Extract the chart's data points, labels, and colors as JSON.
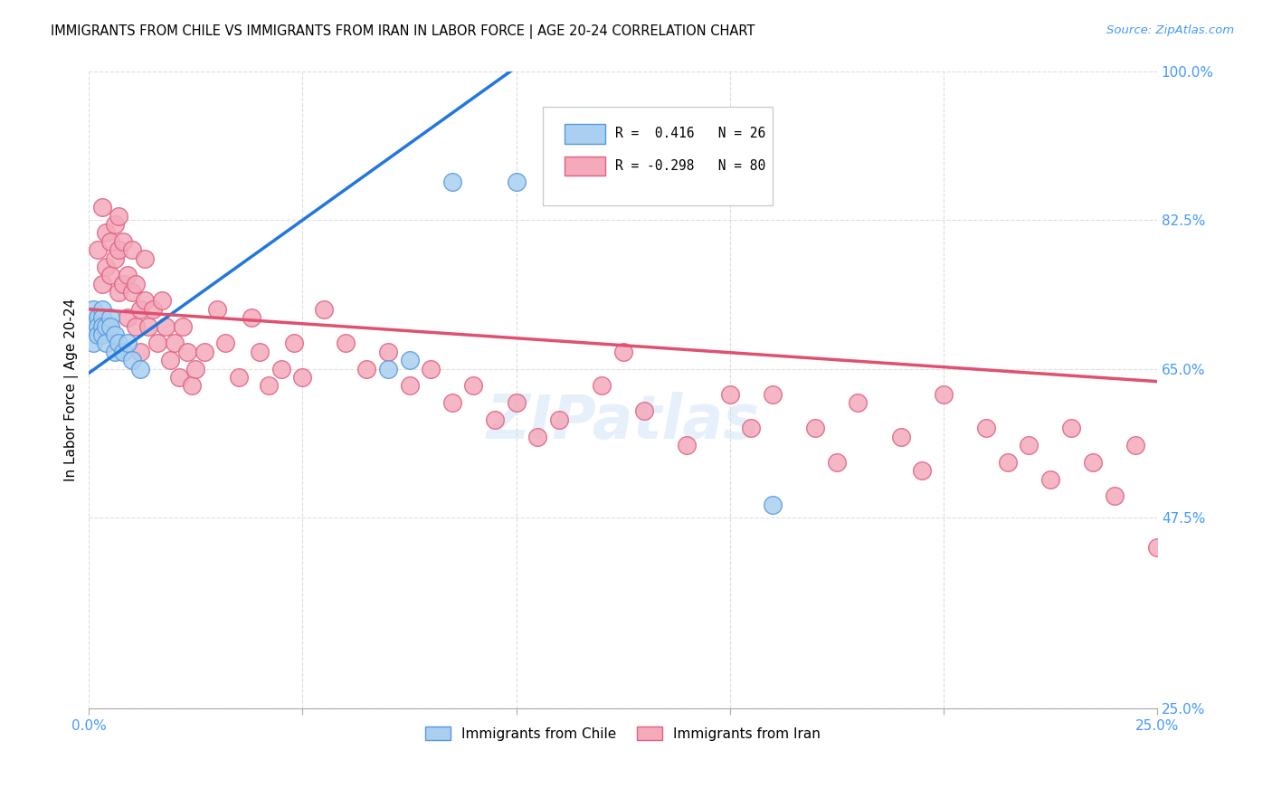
{
  "title": "IMMIGRANTS FROM CHILE VS IMMIGRANTS FROM IRAN IN LABOR FORCE | AGE 20-24 CORRELATION CHART",
  "source": "Source: ZipAtlas.com",
  "ylabel": "In Labor Force | Age 20-24",
  "xlim": [
    0.0,
    0.25
  ],
  "ylim": [
    0.25,
    1.0
  ],
  "xticks": [
    0.0,
    0.05,
    0.1,
    0.15,
    0.2,
    0.25
  ],
  "xticklabels": [
    "0.0%",
    "",
    "",
    "",
    "",
    "25.0%"
  ],
  "yticks": [
    0.25,
    0.475,
    0.65,
    0.825,
    1.0
  ],
  "yticklabels": [
    "25.0%",
    "47.5%",
    "65.0%",
    "82.5%",
    "100.0%"
  ],
  "chile_color": "#aacff0",
  "iran_color": "#f4aabb",
  "chile_edge": "#5599dd",
  "iran_edge": "#e06080",
  "trendline_chile_color": "#2277dd",
  "trendline_iran_color": "#e05070",
  "grid_color": "#dddddd",
  "watermark": "ZIPatlas",
  "chile_x": [
    0.001,
    0.001,
    0.001,
    0.002,
    0.002,
    0.002,
    0.003,
    0.003,
    0.003,
    0.003,
    0.004,
    0.004,
    0.005,
    0.005,
    0.006,
    0.006,
    0.007,
    0.008,
    0.009,
    0.01,
    0.012,
    0.07,
    0.075,
    0.085,
    0.1,
    0.16
  ],
  "chile_y": [
    0.7,
    0.72,
    0.68,
    0.71,
    0.7,
    0.69,
    0.72,
    0.71,
    0.7,
    0.69,
    0.7,
    0.68,
    0.71,
    0.7,
    0.69,
    0.67,
    0.68,
    0.67,
    0.68,
    0.66,
    0.65,
    0.65,
    0.66,
    0.87,
    0.87,
    0.49
  ],
  "iran_x": [
    0.002,
    0.003,
    0.003,
    0.004,
    0.004,
    0.005,
    0.005,
    0.006,
    0.006,
    0.007,
    0.007,
    0.007,
    0.008,
    0.008,
    0.009,
    0.009,
    0.01,
    0.01,
    0.011,
    0.011,
    0.012,
    0.012,
    0.013,
    0.013,
    0.014,
    0.015,
    0.016,
    0.017,
    0.018,
    0.019,
    0.02,
    0.021,
    0.022,
    0.023,
    0.024,
    0.025,
    0.027,
    0.03,
    0.032,
    0.035,
    0.038,
    0.04,
    0.042,
    0.045,
    0.048,
    0.05,
    0.055,
    0.06,
    0.065,
    0.07,
    0.075,
    0.08,
    0.085,
    0.09,
    0.095,
    0.1,
    0.105,
    0.11,
    0.12,
    0.125,
    0.13,
    0.14,
    0.15,
    0.155,
    0.16,
    0.17,
    0.175,
    0.18,
    0.19,
    0.195,
    0.2,
    0.21,
    0.215,
    0.22,
    0.225,
    0.23,
    0.235,
    0.24,
    0.245,
    0.25
  ],
  "iran_y": [
    0.79,
    0.84,
    0.75,
    0.81,
    0.77,
    0.8,
    0.76,
    0.82,
    0.78,
    0.83,
    0.79,
    0.74,
    0.8,
    0.75,
    0.76,
    0.71,
    0.79,
    0.74,
    0.75,
    0.7,
    0.72,
    0.67,
    0.78,
    0.73,
    0.7,
    0.72,
    0.68,
    0.73,
    0.7,
    0.66,
    0.68,
    0.64,
    0.7,
    0.67,
    0.63,
    0.65,
    0.67,
    0.72,
    0.68,
    0.64,
    0.71,
    0.67,
    0.63,
    0.65,
    0.68,
    0.64,
    0.72,
    0.68,
    0.65,
    0.67,
    0.63,
    0.65,
    0.61,
    0.63,
    0.59,
    0.61,
    0.57,
    0.59,
    0.63,
    0.67,
    0.6,
    0.56,
    0.62,
    0.58,
    0.62,
    0.58,
    0.54,
    0.61,
    0.57,
    0.53,
    0.62,
    0.58,
    0.54,
    0.56,
    0.52,
    0.58,
    0.54,
    0.5,
    0.56,
    0.44
  ],
  "chile_trendline_x0": 0.0,
  "chile_trendline_y0": 0.645,
  "chile_trendline_x1": 0.1,
  "chile_trendline_y1": 1.005,
  "iran_trendline_x0": 0.0,
  "iran_trendline_y0": 0.72,
  "iran_trendline_x1": 0.25,
  "iran_trendline_y1": 0.635
}
